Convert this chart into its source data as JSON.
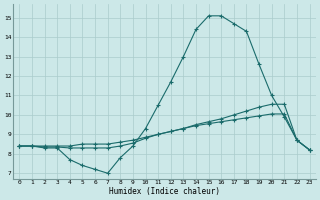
{
  "title": "",
  "xlabel": "Humidex (Indice chaleur)",
  "bg_color": "#cce8e8",
  "grid_color": "#aacccc",
  "line_color": "#1a6b6b",
  "xlim": [
    -0.5,
    23.5
  ],
  "ylim": [
    6.7,
    15.7
  ],
  "xticks": [
    0,
    1,
    2,
    3,
    4,
    5,
    6,
    7,
    8,
    9,
    10,
    11,
    12,
    13,
    14,
    15,
    16,
    17,
    18,
    19,
    20,
    21,
    22,
    23
  ],
  "yticks": [
    7,
    8,
    9,
    10,
    11,
    12,
    13,
    14,
    15
  ],
  "line1_x": [
    0,
    1,
    2,
    3,
    4,
    5,
    6,
    7,
    8,
    9,
    10,
    11,
    12,
    13,
    14,
    15,
    16,
    17,
    18,
    19,
    20,
    21,
    22,
    23
  ],
  "line1_y": [
    8.4,
    8.4,
    8.3,
    8.3,
    7.7,
    7.4,
    7.2,
    7.0,
    7.8,
    8.4,
    9.3,
    10.5,
    11.7,
    13.0,
    14.4,
    15.1,
    15.1,
    14.7,
    14.3,
    12.6,
    11.0,
    9.9,
    8.7,
    8.2
  ],
  "line2_x": [
    0,
    1,
    2,
    3,
    4,
    5,
    6,
    7,
    8,
    9,
    10,
    11,
    12,
    13,
    14,
    15,
    16,
    17,
    18,
    19,
    20,
    21,
    22,
    23
  ],
  "line2_y": [
    8.4,
    8.4,
    8.4,
    8.4,
    8.4,
    8.5,
    8.5,
    8.5,
    8.6,
    8.7,
    8.85,
    9.0,
    9.15,
    9.3,
    9.5,
    9.65,
    9.8,
    10.0,
    10.2,
    10.4,
    10.55,
    10.55,
    8.7,
    8.2
  ],
  "line3_x": [
    0,
    1,
    2,
    3,
    4,
    5,
    6,
    7,
    8,
    9,
    10,
    11,
    12,
    13,
    14,
    15,
    16,
    17,
    18,
    19,
    20,
    21,
    22,
    23
  ],
  "line3_y": [
    8.4,
    8.4,
    8.35,
    8.35,
    8.3,
    8.3,
    8.3,
    8.3,
    8.4,
    8.55,
    8.8,
    9.0,
    9.15,
    9.3,
    9.45,
    9.55,
    9.65,
    9.75,
    9.85,
    9.95,
    10.05,
    10.05,
    8.7,
    8.2
  ]
}
